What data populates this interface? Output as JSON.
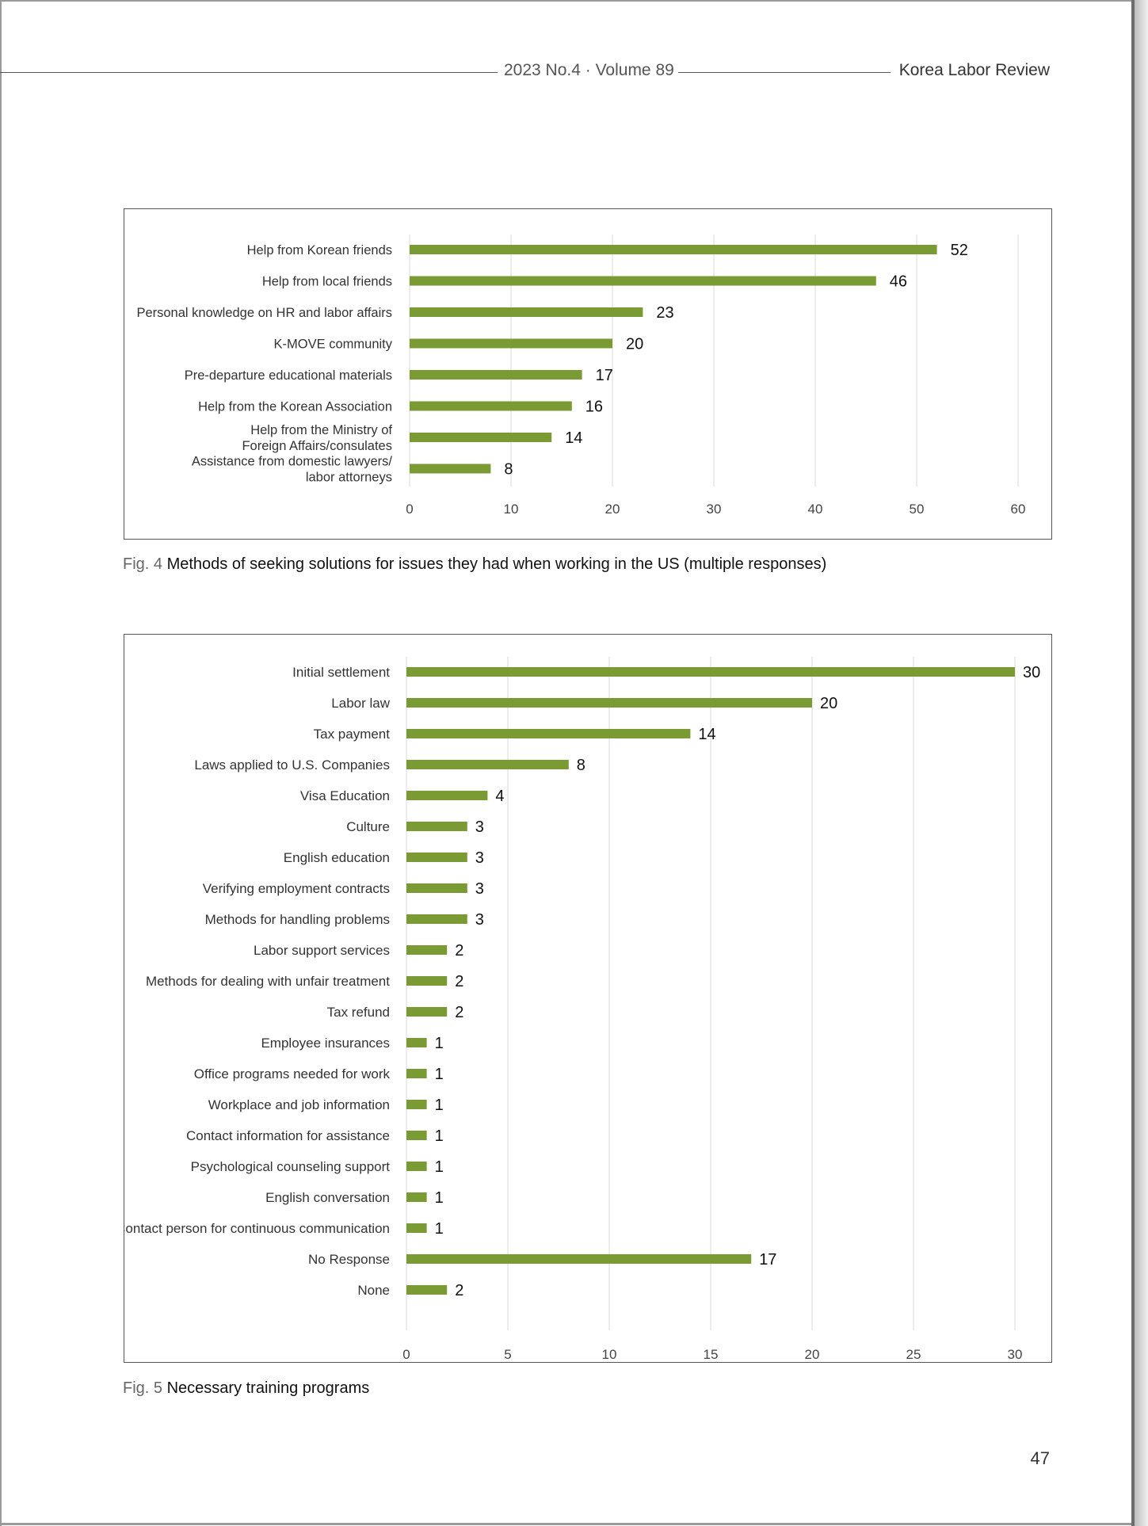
{
  "header": {
    "issue": "2023 No.4 · Volume 89",
    "journal": "Korea Labor Review"
  },
  "colors": {
    "bar": "#7a9a34",
    "grid": "#d9d9d9"
  },
  "figures": [
    {
      "fig_num": "Fig. 4",
      "caption": "Methods of seeking solutions for issues they had when working in the US (multiple responses)"
    },
    {
      "fig_num": "Fig. 5",
      "caption": "Necessary training programs"
    }
  ],
  "page_number": "47",
  "chart_data": [
    {
      "type": "bar",
      "orientation": "horizontal",
      "categories": [
        "Help from Korean friends",
        "Help from local friends",
        "Personal knowledge on HR and labor affairs",
        "K-MOVE community",
        "Pre-departure educational materials",
        "Help from the Korean Association",
        "Help from the Ministry of\nForeign Affairs/consulates",
        "Assistance from domestic lawyers/\nlabor attorneys"
      ],
      "values": [
        52,
        46,
        23,
        20,
        17,
        16,
        14,
        8
      ],
      "xlim": [
        0,
        60
      ],
      "xticks": [
        0,
        10,
        20,
        30,
        40,
        50,
        60
      ],
      "grid": "vertical",
      "data_labels": true
    },
    {
      "type": "bar",
      "orientation": "horizontal",
      "categories": [
        "Initial settlement",
        "Labor law",
        "Tax payment",
        "Laws applied to U.S. Companies",
        "Visa Education",
        "Culture",
        "English education",
        "Verifying employment contracts",
        "Methods for handling problems",
        "Labor support services",
        "Methods for dealing with unfair treatment",
        "Tax refund",
        "Employee insurances",
        "Office programs needed for work",
        "Workplace and job information",
        "Contact information for assistance",
        "Psychological counseling support",
        "English conversation",
        "Contact person for continuous communication",
        "No Response",
        "None"
      ],
      "values": [
        30,
        20,
        14,
        8,
        4,
        3,
        3,
        3,
        3,
        2,
        2,
        2,
        1,
        1,
        1,
        1,
        1,
        1,
        1,
        17,
        2
      ],
      "xlim": [
        0,
        30
      ],
      "xticks": [
        0,
        5,
        10,
        15,
        20,
        25,
        30
      ],
      "grid": "vertical",
      "data_labels": true
    }
  ]
}
